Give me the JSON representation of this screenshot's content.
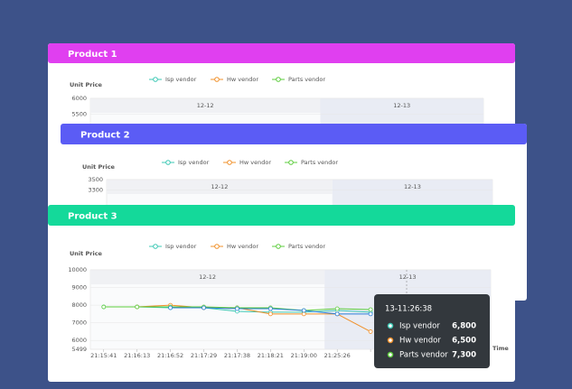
{
  "chart_data": [
    {
      "type": "line",
      "title": "Product 1",
      "header_color": "#e03ff0",
      "y_label": "Unit Price",
      "sections": [
        "12-12",
        "12-13"
      ],
      "series": [
        {
          "name": "Isp vendor",
          "color": "#3cc8b4"
        },
        {
          "name": "Hw vendor",
          "color": "#f0902a"
        },
        {
          "name": "Parts vendor",
          "color": "#5ccc3c"
        }
      ],
      "ylim": [
        3500,
        6000
      ],
      "yticks": [
        6000,
        5500
      ]
    },
    {
      "type": "line",
      "title": "Product 2",
      "header_color": "#5b5cf5",
      "y_label": "Unit Price",
      "sections": [
        "12-12",
        "12-13"
      ],
      "series": [
        {
          "name": "Isp vendor",
          "color": "#3cc8b4"
        },
        {
          "name": "Hw vendor",
          "color": "#f0902a"
        },
        {
          "name": "Parts vendor",
          "color": "#5ccc3c"
        }
      ],
      "ylim": [
        2000,
        3500
      ],
      "yticks": [
        3500,
        3300
      ]
    },
    {
      "type": "line",
      "title": "Product 3",
      "header_color": "#14d99a",
      "y_label": "Unit Price",
      "x_label": "Time",
      "sections": [
        "12-12",
        "12-13"
      ],
      "categories": [
        "21:15:41",
        "21:16:13",
        "21:16:52",
        "21:17:29",
        "21:17:38",
        "21:18:21",
        "21:19:00",
        "21:25:26",
        null,
        null
      ],
      "series": [
        {
          "name": "Isp vendor",
          "color": "#3cc8b4",
          "values": [
            7900,
            7900,
            7850,
            7850,
            7650,
            7600,
            7600,
            7700,
            7600,
            null
          ]
        },
        {
          "name": "Hw vendor",
          "color": "#f0902a",
          "values": [
            null,
            7900,
            8000,
            7850,
            7850,
            7500,
            7500,
            7500,
            6500,
            null
          ]
        },
        {
          "name": "Parts vendor",
          "color": "#5ccc3c",
          "values": [
            7900,
            7900,
            7900,
            7900,
            7850,
            7850,
            7700,
            7800,
            7750,
            null
          ]
        },
        {
          "color": "#2a7ed8",
          "values": [
            null,
            null,
            7850,
            7850,
            7800,
            7800,
            7700,
            7500,
            7500,
            null
          ]
        }
      ],
      "ylim": [
        5499,
        10000
      ],
      "yticks": [
        10000,
        9000,
        8000,
        7000,
        6000,
        5499
      ],
      "tooltip": {
        "title": "13-11:26:38",
        "rows": [
          {
            "name": "Isp vendor",
            "value": "6,800",
            "color": "#3cc8b4"
          },
          {
            "name": "Hw vendor",
            "value": "6,500",
            "color": "#f0902a"
          },
          {
            "name": "Parts vendor",
            "value": "7,300",
            "color": "#5ccc3c"
          }
        ]
      }
    }
  ]
}
